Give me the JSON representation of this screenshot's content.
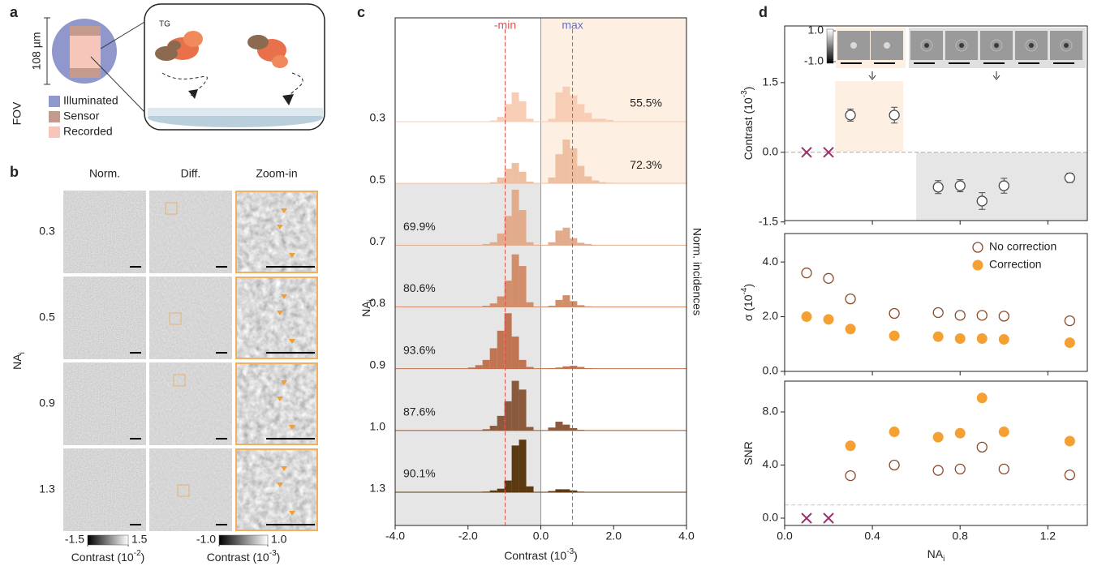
{
  "panels": {
    "a": {
      "letter": "a",
      "fov_size": "108 µm",
      "fov_label": "FOV",
      "molecule_label": "TG",
      "legend": [
        {
          "name": "Illuminated",
          "color": "#8f97cc"
        },
        {
          "name": "Sensor",
          "color": "#c49a8e"
        },
        {
          "name": "Recorded",
          "color": "#f7c6ba"
        }
      ]
    },
    "b": {
      "letter": "b",
      "columns": [
        "Norm.",
        "Diff.",
        "Zoom-in"
      ],
      "rows": [
        "0.3",
        "0.5",
        "0.9",
        "1.3"
      ],
      "ylabel": {
        "text": "NA",
        "sub": "i"
      },
      "colorbars": [
        {
          "ticks": [
            -1.5,
            1.5
          ],
          "label": {
            "text": "Contrast (10",
            "sup": "-2",
            "after": ")"
          }
        },
        {
          "ticks": [
            {
              "value": -1,
              "label": "-1.0"
            },
            {
              "value": 1,
              "label": "1.0"
            }
          ],
          "label": {
            "text": "Contrast (10",
            "sup": "-3",
            "after": ")"
          }
        }
      ]
    }
  },
  "chart_data": [
    {
      "type": "histogram",
      "panel_label": "c",
      "categories": [
        "0.3",
        "0.5",
        "0.7",
        "0.8",
        "0.9",
        "1.0",
        "1.3"
      ],
      "row_annotations": [
        "55.5%",
        "72.3%",
        "69.9%",
        "80.6%",
        "93.6%",
        "87.6%",
        "90.1%"
      ],
      "bins": [
        -2,
        -1.8,
        -1.6,
        -1.4,
        -1.2,
        -1,
        -0.8,
        -0.6,
        -0.4,
        -0.2,
        0,
        0.2,
        0.4,
        0.6,
        0.8,
        1,
        1.2,
        1.4,
        1.6,
        1.8,
        2
      ],
      "series": [
        {
          "color": "#f7cdb5",
          "values": [
            0,
            0,
            0,
            0.02,
            0.08,
            0.3,
            0.5,
            0.35,
            0.05,
            0,
            0,
            0.05,
            0.5,
            0.6,
            0.45,
            0.3,
            0.15,
            0.05,
            0.05,
            0.03
          ]
        },
        {
          "color": "#efbfa2",
          "values": [
            0,
            0,
            0,
            0.02,
            0.1,
            0.25,
            0.35,
            0.2,
            0.03,
            0,
            0,
            0.1,
            0.5,
            0.75,
            0.6,
            0.3,
            0.12,
            0.05,
            0.02,
            0.01
          ]
        },
        {
          "color": "#e2ab8b",
          "values": [
            0,
            0,
            0.02,
            0.05,
            0.2,
            0.5,
            0.95,
            0.6,
            0.05,
            0,
            0,
            0.05,
            0.25,
            0.3,
            0.12,
            0.04,
            0.02,
            0,
            0,
            0
          ]
        },
        {
          "color": "#d28d6a",
          "values": [
            0,
            0,
            0.02,
            0.06,
            0.18,
            0.45,
            0.9,
            0.7,
            0.08,
            0,
            0,
            0.02,
            0.12,
            0.2,
            0.1,
            0.03,
            0.01,
            0,
            0,
            0
          ]
        },
        {
          "color": "#c07452",
          "values": [
            0.02,
            0.06,
            0.15,
            0.35,
            0.65,
            0.95,
            0.55,
            0.15,
            0.03,
            0,
            0,
            0.01,
            0.02,
            0.04,
            0.05,
            0.03,
            0.01,
            0,
            0,
            0
          ]
        },
        {
          "color": "#8b5a3c",
          "values": [
            0,
            0,
            0.02,
            0.08,
            0.25,
            0.5,
            0.85,
            0.7,
            0.06,
            0,
            0,
            0.05,
            0.15,
            0.1,
            0.04,
            0.01,
            0,
            0,
            0,
            0
          ]
        },
        {
          "color": "#5b3a12",
          "values": [
            0,
            0,
            0.01,
            0.03,
            0.06,
            0.2,
            0.8,
            0.9,
            0.1,
            0,
            0,
            0.02,
            0.05,
            0.05,
            0.03,
            0.01,
            0,
            0,
            0,
            0
          ]
        }
      ],
      "ylim": [
        0,
        1
      ],
      "xlim": [
        -4,
        4
      ],
      "xticks": [
        {
          "value": -4,
          "label": "-4.0"
        },
        {
          "value": -2,
          "label": "-2.0"
        },
        {
          "value": 0,
          "label": "0.0"
        },
        {
          "value": 2,
          "label": "2.0"
        },
        {
          "value": 4,
          "label": "4.0"
        }
      ],
      "xlabel": {
        "text": "Contrast (10",
        "sup": "-3",
        "after": ")"
      },
      "ylabel": {
        "text": "NA",
        "sub": "i"
      },
      "y2label": "Norm. incidences",
      "vlines": [
        {
          "value": -0.98,
          "label": "-min",
          "color": "#d9534f"
        },
        {
          "value": 0.87,
          "label": "max",
          "color": "#6a6fc2"
        }
      ],
      "shaded_regions": [
        {
          "xlim": [
            0,
            4
          ],
          "rows": [
            0,
            1
          ],
          "color": "#fdf0e2"
        },
        {
          "xlim": [
            -4,
            0
          ],
          "rows": [
            2,
            6
          ],
          "color": "#e6e6e6"
        }
      ]
    },
    {
      "type": "scatter",
      "panel_label": "d",
      "xlim": [
        0,
        1.38
      ],
      "xticks": [
        0,
        0.4,
        0.8,
        1.2
      ],
      "ylim": [
        -1.47,
        2.72
      ],
      "yticks": [
        -1.5,
        {
          "value": 0,
          "label": "0.0"
        },
        1.5
      ],
      "ylabel": {
        "text": "Contrast (10",
        "sup": "-3",
        "after": ")"
      },
      "hline": {
        "value": 0,
        "color": "#aaaaaa"
      },
      "shaded_regions": [
        {
          "xlim": [
            0.23,
            0.54
          ],
          "ylim": [
            0,
            1.53
          ],
          "color": "#fdf0e2"
        },
        {
          "xlim": [
            0.6,
            1.38
          ],
          "ylim": [
            -1.47,
            0
          ],
          "color": "#e6e6e6"
        }
      ],
      "inset_colorbar_ticks": [
        {
          "value": 1,
          "label": "1.0"
        },
        {
          "value": -1,
          "label": "-1.0"
        }
      ],
      "series": [
        {
          "marker": "x",
          "color": "#9b2f6a",
          "x": [
            0.1,
            0.2
          ],
          "values": [
            0,
            0
          ]
        },
        {
          "marker": "open-circle",
          "color": "#4a4a4a",
          "x": [
            0.3,
            0.5,
            0.7,
            0.8,
            0.9,
            1.0,
            1.3
          ],
          "values": [
            0.8,
            0.8,
            -0.75,
            -0.72,
            -1.05,
            -0.72,
            -0.55
          ],
          "errors": [
            0.13,
            0.17,
            0.14,
            0.13,
            0.18,
            0.16,
            0.1
          ]
        }
      ]
    },
    {
      "type": "scatter",
      "xlim": [
        0,
        1.38
      ],
      "xticks": [
        0,
        0.4,
        0.8,
        1.2
      ],
      "ylim": [
        0,
        5.04
      ],
      "yticks": [
        {
          "value": 0,
          "label": "0.0"
        },
        {
          "value": 2,
          "label": "2.0"
        },
        {
          "value": 4,
          "label": "4.0"
        }
      ],
      "ylabel": {
        "text": "σ (10",
        "sup": "-4",
        "after": ")"
      },
      "legend": "upper right",
      "series": [
        {
          "name": "No correction",
          "marker": "open-circle",
          "color": "#8b4a2b",
          "x": [
            0.1,
            0.2,
            0.3,
            0.5,
            0.7,
            0.8,
            0.9,
            1.0,
            1.3
          ],
          "values": [
            3.6,
            3.4,
            2.65,
            2.12,
            2.15,
            2.05,
            2.05,
            2.02,
            1.85
          ]
        },
        {
          "name": "Correction",
          "marker": "circle",
          "color": "#f5a033",
          "x": [
            0.1,
            0.2,
            0.3,
            0.5,
            0.7,
            0.8,
            0.9,
            1.0,
            1.3
          ],
          "values": [
            2.0,
            1.9,
            1.55,
            1.3,
            1.27,
            1.2,
            1.2,
            1.17,
            1.05
          ]
        }
      ]
    },
    {
      "type": "scatter",
      "xlim": [
        0,
        1.38
      ],
      "xticks": [
        {
          "value": 0,
          "label": "0.0"
        },
        {
          "value": 0.4,
          "label": "0.4"
        },
        {
          "value": 0.8,
          "label": "0.8"
        },
        {
          "value": 1.2,
          "label": "1.2"
        }
      ],
      "xlabel": {
        "text": "NA",
        "sub": "i"
      },
      "ylim": [
        -0.55,
        10.32
      ],
      "yticks": [
        {
          "value": 0,
          "label": "0.0"
        },
        {
          "value": 4,
          "label": "4.0"
        },
        {
          "value": 8,
          "label": "8.0"
        }
      ],
      "ylabel": {
        "text": "SNR"
      },
      "hline": {
        "value": 1,
        "color": "#cccccc"
      },
      "series": [
        {
          "marker": "x",
          "color": "#9b2f6a",
          "x": [
            0.1,
            0.2
          ],
          "values": [
            0,
            0
          ]
        },
        {
          "marker": "open-circle",
          "color": "#8b4a2b",
          "x": [
            0.3,
            0.5,
            0.7,
            0.8,
            0.9,
            1.0,
            1.3
          ],
          "values": [
            3.2,
            4.0,
            3.6,
            3.7,
            5.35,
            3.7,
            3.25
          ]
        },
        {
          "marker": "circle",
          "color": "#f5a033",
          "x": [
            0.3,
            0.5,
            0.7,
            0.8,
            0.9,
            1.0,
            1.3
          ],
          "values": [
            5.45,
            6.5,
            6.1,
            6.4,
            9.05,
            6.5,
            5.8
          ]
        }
      ]
    }
  ]
}
